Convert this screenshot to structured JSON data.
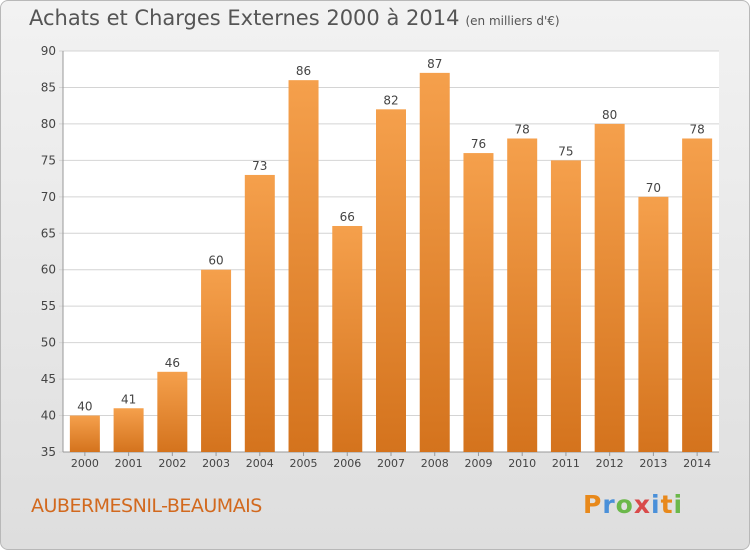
{
  "title": "Achats et Charges Externes 2000 à 2014",
  "subtitle": "(en milliers d'€)",
  "commune": "AUBERMESNIL-BEAUMAIS",
  "logo": "Proxiti",
  "colors": {
    "bar_light": "#f5a04c",
    "bar_dark": "#d4731d",
    "commune": "#d2691e"
  },
  "chart_data": {
    "type": "bar",
    "categories": [
      "2000",
      "2001",
      "2002",
      "2003",
      "2004",
      "2005",
      "2006",
      "2007",
      "2008",
      "2009",
      "2010",
      "2011",
      "2012",
      "2013",
      "2014"
    ],
    "values": [
      40,
      41,
      46,
      60,
      73,
      86,
      66,
      82,
      87,
      76,
      78,
      75,
      80,
      70,
      78
    ],
    "title": "Achats et Charges Externes 2000 à 2014",
    "ylim": [
      35,
      90
    ],
    "yticks": [
      35,
      40,
      45,
      50,
      55,
      60,
      65,
      70,
      75,
      80,
      85,
      90
    ],
    "grid": true,
    "data_labels": true
  }
}
